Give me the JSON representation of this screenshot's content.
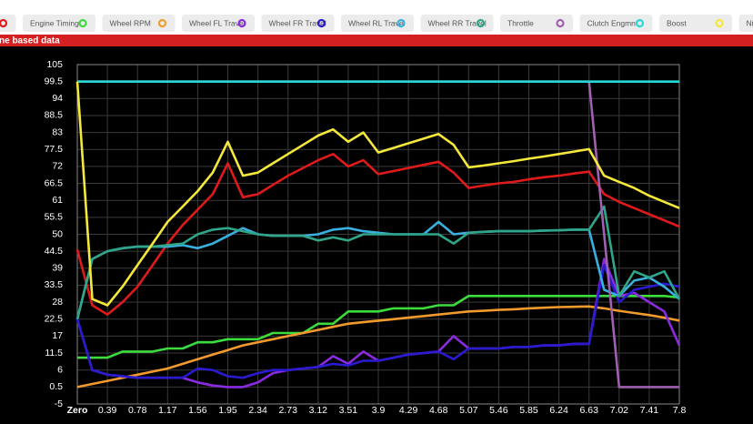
{
  "banner": "ne based data",
  "chart_data": {
    "type": "line",
    "x": [
      0,
      0.195,
      0.39,
      0.585,
      0.78,
      0.975,
      1.17,
      1.365,
      1.56,
      1.755,
      1.95,
      2.145,
      2.34,
      2.535,
      2.73,
      2.925,
      3.12,
      3.315,
      3.51,
      3.705,
      3.9,
      4.095,
      4.29,
      4.485,
      4.68,
      4.875,
      5.07,
      5.265,
      5.46,
      5.655,
      5.85,
      6.045,
      6.24,
      6.435,
      6.63,
      6.825,
      7.02,
      7.215,
      7.41,
      7.605,
      7.8
    ],
    "xlim": [
      0,
      7.8
    ],
    "xticks": [
      {
        "value": 0,
        "label": "Zero"
      },
      0.39,
      0.78,
      1.17,
      1.56,
      1.95,
      2.34,
      2.73,
      3.12,
      3.51,
      3.9,
      4.29,
      4.68,
      5.07,
      5.46,
      5.85,
      6.24,
      6.63,
      7.02,
      7.41,
      7.8
    ],
    "ylim": [
      -5,
      105
    ],
    "yticks": [
      -5,
      0.5,
      6,
      11.5,
      17,
      22.5,
      28,
      33.5,
      39,
      44.5,
      50,
      55.5,
      61,
      66.5,
      72,
      77.5,
      83,
      88.5,
      94,
      99.5,
      105
    ],
    "grid": true,
    "series": [
      {
        "name": null,
        "color": "#e01a1a",
        "values": [
          45,
          27,
          24,
          28,
          33,
          40,
          47,
          53,
          58,
          63,
          73,
          62,
          63,
          66,
          69,
          71.5,
          74,
          76,
          72,
          74,
          69.5,
          70.5,
          71.5,
          72.5,
          73.5,
          70,
          65,
          65.8,
          66.5,
          67,
          67.8,
          68.5,
          69,
          69.7,
          70.3,
          63,
          60.5,
          58.5,
          56.5,
          54.5,
          52.5
        ]
      },
      {
        "name": "Engine Timing",
        "color": "#3ddc3d",
        "values": [
          10,
          10,
          10,
          12,
          12,
          12,
          13,
          13,
          15,
          15,
          16,
          16,
          16,
          18,
          18,
          18,
          21,
          21,
          25,
          25,
          25,
          26,
          26,
          26,
          27,
          27,
          30,
          30,
          30,
          30,
          30,
          30,
          30,
          30,
          30,
          30,
          30,
          30,
          30,
          30,
          29.5
        ]
      },
      {
        "name": "Wheel RPM",
        "color": "#f39a2c",
        "values": [
          0.5,
          1.5,
          2.5,
          3.5,
          4.5,
          5.5,
          6.5,
          8,
          9.5,
          11,
          12.5,
          14,
          15,
          16,
          17,
          18,
          19,
          20,
          21,
          21.5,
          22,
          22.5,
          23,
          23.5,
          24,
          24.5,
          25,
          25.2,
          25.5,
          25.7,
          26,
          26.2,
          26.4,
          26.5,
          26.6,
          26,
          25.2,
          24.5,
          23.8,
          23,
          22
        ]
      },
      {
        "name": "Wheel FL Travel",
        "color": "#8a2be2",
        "values": [
          22.5,
          6,
          4.5,
          4,
          3.5,
          3.5,
          3.5,
          3.5,
          2,
          1,
          0.5,
          0.5,
          2,
          5,
          6,
          6.5,
          7,
          10.5,
          8,
          12,
          9,
          10,
          11,
          11.5,
          12,
          17,
          13,
          13,
          13,
          13.5,
          13.5,
          14,
          14,
          14.5,
          14.5,
          42,
          30,
          31,
          28,
          25,
          14
        ]
      },
      {
        "name": "Wheel FR Travel",
        "color": "#2a1ad0",
        "values": [
          22.5,
          6,
          4.5,
          4,
          3.5,
          3.5,
          3.5,
          3.5,
          6.5,
          6,
          4,
          3.5,
          5,
          6,
          6,
          6.5,
          7,
          8,
          7.5,
          9,
          9,
          10,
          11,
          11.5,
          12,
          9.5,
          13,
          13,
          13,
          13.5,
          13.5,
          14,
          14,
          14.5,
          14.5,
          40,
          28,
          32,
          33,
          34,
          33
        ]
      },
      {
        "name": "Wheel RL Travel",
        "color": "#3ab0e0",
        "values": [
          22.5,
          42,
          44.5,
          45.5,
          46,
          46,
          46,
          46.5,
          45.5,
          47,
          49.5,
          52,
          50,
          49.5,
          49.5,
          49.5,
          50,
          51.5,
          52,
          51,
          50.5,
          50,
          50,
          50,
          54,
          50,
          50.5,
          50.8,
          51,
          51,
          51,
          51.2,
          51.3,
          51.5,
          51.5,
          32,
          30,
          35,
          36,
          33,
          29
        ]
      },
      {
        "name": "Wheel RR Travel",
        "color": "#2fa58a",
        "values": [
          22.5,
          42,
          44.5,
          45.5,
          46,
          46,
          46.5,
          47,
          50,
          51.5,
          52,
          51,
          50,
          49.5,
          49.5,
          49.5,
          48,
          49,
          48,
          50,
          50,
          50,
          50,
          50,
          50,
          47,
          50.5,
          50.8,
          51,
          51,
          51,
          51.2,
          51.3,
          51.5,
          51.5,
          59,
          30,
          38,
          36,
          38,
          29
        ]
      },
      {
        "name": "Throttle",
        "color": "#a060b0",
        "values": [
          99.5,
          99.5,
          99.5,
          99.5,
          99.5,
          99.5,
          99.5,
          99.5,
          99.5,
          99.5,
          99.5,
          99.5,
          99.5,
          99.5,
          99.5,
          99.5,
          99.5,
          99.5,
          99.5,
          99.5,
          99.5,
          99.5,
          99.5,
          99.5,
          99.5,
          99.5,
          99.5,
          99.5,
          99.5,
          99.5,
          99.5,
          99.5,
          99.5,
          99.5,
          99.5,
          50,
          0.5,
          0.5,
          0.5,
          0.5,
          0.5
        ]
      },
      {
        "name": "Clutch Engmnt.",
        "color": "#26d9d9",
        "values": [
          99.5,
          99.5,
          99.5,
          99.5,
          99.5,
          99.5,
          99.5,
          99.5,
          99.5,
          99.5,
          99.5,
          99.5,
          99.5,
          99.5,
          99.5,
          99.5,
          99.5,
          99.5,
          99.5,
          99.5,
          99.5,
          99.5,
          99.5,
          99.5,
          99.5,
          99.5,
          99.5,
          99.5,
          99.5,
          99.5,
          99.5,
          99.5,
          99.5,
          99.5,
          99.5,
          99.5,
          99.5,
          99.5,
          99.5,
          99.5,
          99.5
        ]
      },
      {
        "name": "Boost",
        "color": "#f5e83a",
        "values": [
          99.5,
          29,
          27,
          33,
          40,
          47,
          54,
          59,
          64,
          70,
          80,
          69,
          70,
          73,
          76,
          79,
          82,
          84,
          80,
          83,
          76.5,
          78,
          79.5,
          81,
          82.5,
          79,
          71.7,
          72.3,
          73,
          73.7,
          74.5,
          75.2,
          76,
          76.8,
          77.6,
          69,
          67,
          65,
          62.5,
          60.5,
          58.5
        ]
      },
      {
        "name": "Ni",
        "color": null,
        "values": [
          null,
          null,
          null,
          null,
          null,
          null,
          null,
          null,
          null,
          null,
          null,
          null,
          null,
          null,
          null,
          null,
          null,
          null,
          null,
          null,
          null,
          null,
          null,
          null,
          null,
          null,
          null,
          null,
          null,
          null,
          null,
          null,
          null,
          null,
          null,
          null,
          null,
          null,
          null,
          null,
          null
        ]
      }
    ]
  }
}
